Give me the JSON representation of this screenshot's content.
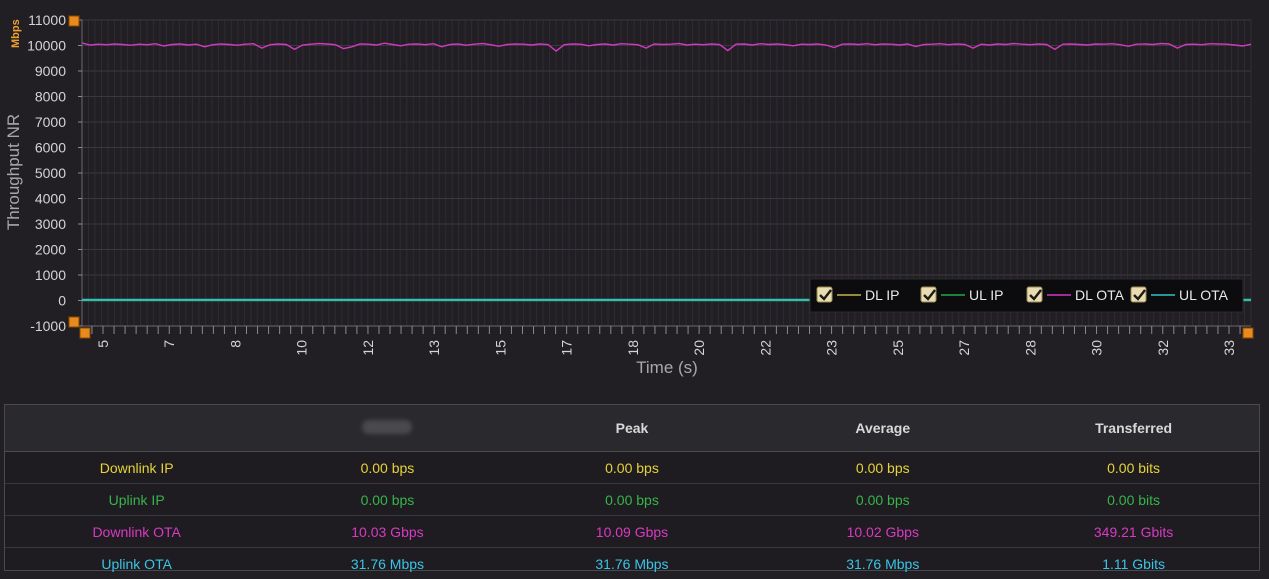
{
  "chart_data": {
    "type": "line",
    "ylabel": "Throughput NR",
    "yunit": "Mbps",
    "xlabel": "Time (s)",
    "ylim": [
      -1000,
      11000
    ],
    "yticks": [
      -1000,
      0,
      1000,
      2000,
      3000,
      4000,
      5000,
      6000,
      7000,
      8000,
      9000,
      10000,
      11000
    ],
    "xlim": [
      4.6,
      33.7
    ],
    "xtick_labels": [
      "5",
      "7",
      "8",
      "10",
      "12",
      "13",
      "15",
      "17",
      "18",
      "20",
      "22",
      "23",
      "25",
      "27",
      "28",
      "30",
      "32",
      "33"
    ],
    "grid": true,
    "legend_position": "bottom-right",
    "series": [
      {
        "name": "DL IP",
        "color": "#c8b44a",
        "values_const": 0
      },
      {
        "name": "UL IP",
        "color": "#22a84a",
        "values_const": 0
      },
      {
        "name": "DL OTA",
        "color": "#d238c0",
        "y": [
          10100,
          10020,
          10050,
          10030,
          10060,
          10040,
          10010,
          10050,
          10030,
          10070,
          9980,
          10040,
          10060,
          10020,
          10050,
          9950,
          10030,
          10060,
          10040,
          10010,
          10050,
          10070,
          9900,
          10030,
          10060,
          10040,
          9850,
          10020,
          10050,
          10080,
          10060,
          10030,
          9880,
          9950,
          10060,
          10050,
          10020,
          10090,
          10040,
          9990,
          10050,
          10060,
          10030,
          10070,
          9950,
          10040,
          10060,
          10010,
          10050,
          10080,
          10030,
          9970,
          10040,
          10060,
          10050,
          10020,
          10060,
          10040,
          9780,
          10030,
          10060,
          10050,
          9990,
          10040,
          10060,
          10020,
          10070,
          10050,
          10030,
          9900,
          10060,
          10040,
          10050,
          10080,
          10020,
          10050,
          10030,
          10060,
          10040,
          9800,
          10050,
          10060,
          10020,
          10070,
          10040,
          10060,
          10030,
          9990,
          10050,
          10040,
          10060,
          10020,
          9920,
          10050,
          10060,
          10040,
          10070,
          10030,
          10060,
          10050,
          10020,
          10060,
          9960,
          10040,
          10050,
          10070,
          10030,
          10060,
          10040,
          9900,
          10050,
          10020,
          10060,
          10040,
          10080,
          10050,
          10030,
          10060,
          10040,
          9850,
          10050,
          10060,
          10040,
          10020,
          10060,
          10050,
          10070,
          10030,
          9970,
          10050,
          10060,
          10040,
          10080,
          10060,
          9900,
          10040,
          10050,
          10030,
          10070,
          10060,
          10050,
          10020,
          9980,
          10050
        ]
      },
      {
        "name": "UL OTA",
        "color": "#2ec4c4",
        "values_const": 31.76
      }
    ]
  },
  "stats": {
    "headers": [
      "",
      "",
      "Peak",
      "Average",
      "Transferred"
    ],
    "rows": [
      {
        "label": "Downlink IP",
        "color": "#e6d23a",
        "values": [
          "0.00 bps",
          "0.00 bps",
          "0.00 bps",
          "0.00 bits"
        ]
      },
      {
        "label": "Uplink IP",
        "color": "#36b54a",
        "values": [
          "0.00 bps",
          "0.00 bps",
          "0.00 bps",
          "0.00 bits"
        ]
      },
      {
        "label": "Downlink OTA",
        "color": "#d83ac4",
        "values": [
          "10.03 Gbps",
          "10.09 Gbps",
          "10.02 Gbps",
          "349.21 Gbits"
        ]
      },
      {
        "label": "Uplink OTA",
        "color": "#3ac4e6",
        "values": [
          "31.76 Mbps",
          "31.76 Mbps",
          "31.76 Mbps",
          "1.11 Gbits"
        ]
      }
    ]
  }
}
